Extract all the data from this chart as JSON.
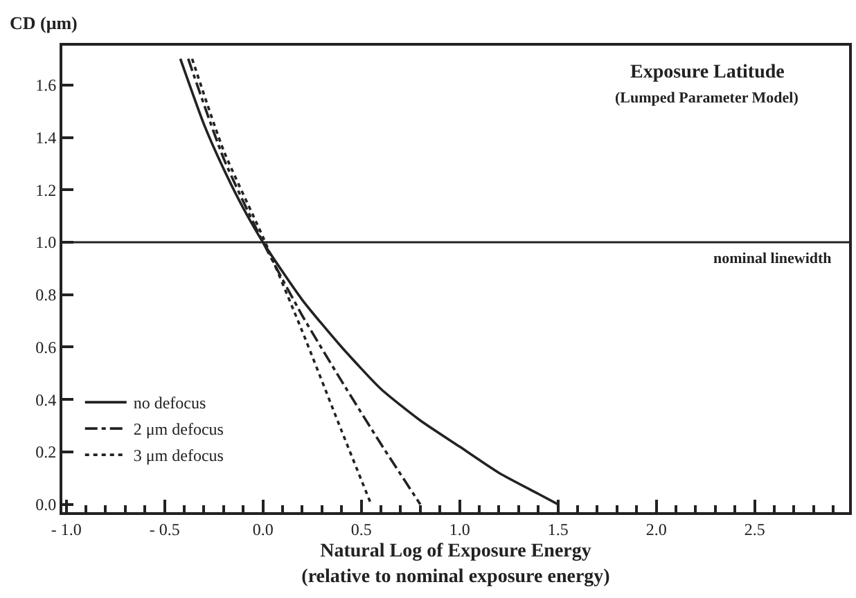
{
  "chart_data": {
    "type": "line",
    "title": "Exposure Latitude",
    "subtitle": "(Lumped Parameter Model)",
    "xlabel": "Natural Log of Exposure Energy\n(relative to nominal exposure energy)",
    "ylabel": "CD (μm)",
    "xlim": [
      -1.02,
      2.98
    ],
    "ylim": [
      -0.03,
      1.75
    ],
    "xticks": [
      {
        "value": -1.0,
        "label": "- 1.0"
      },
      {
        "value": -0.5,
        "label": "- 0.5"
      },
      {
        "value": 0.0,
        "label": "0.0"
      },
      {
        "value": 0.5,
        "label": "0.5"
      },
      {
        "value": 1.0,
        "label": "1.0"
      },
      {
        "value": 1.5,
        "label": "1.5"
      },
      {
        "value": 2.0,
        "label": "2.0"
      },
      {
        "value": 2.5,
        "label": "2.5"
      }
    ],
    "yticks": [
      {
        "value": 0,
        "label": "0.0"
      },
      {
        "value": 0.2,
        "label": "0.2"
      },
      {
        "value": 0.4,
        "label": "0.4"
      },
      {
        "value": 0.6,
        "label": "0.6"
      },
      {
        "value": 0.8,
        "label": "0.8"
      },
      {
        "value": 1.0,
        "label": "1.0"
      },
      {
        "value": 1.2,
        "label": "1.2"
      },
      {
        "value": 1.4,
        "label": "1.4"
      },
      {
        "value": 1.6,
        "label": "1.6"
      }
    ],
    "legend": "bottom left",
    "marker": "none",
    "ref_lines": [
      {
        "axis": "y",
        "value": 1.0,
        "label": "nominal linewidth",
        "color": "#222222"
      }
    ],
    "series": [
      {
        "name": "no defocus",
        "color": "#222222",
        "line_style": "solid",
        "x": [
          -0.42,
          -0.3,
          -0.2,
          -0.1,
          0.0,
          0.2,
          0.4,
          0.6,
          0.8,
          1.0,
          1.2,
          1.4,
          1.5
        ],
        "values": [
          1.7,
          1.45,
          1.28,
          1.13,
          1.0,
          0.78,
          0.6,
          0.44,
          0.32,
          0.22,
          0.12,
          0.04,
          0.0
        ]
      },
      {
        "name": "2 μm defocus",
        "color": "#222222",
        "line_style": "dashdot",
        "x": [
          -0.38,
          -0.2,
          0.0,
          0.2,
          0.4,
          0.6,
          0.8
        ],
        "values": [
          1.7,
          1.32,
          1.0,
          0.72,
          0.47,
          0.23,
          0.0
        ]
      },
      {
        "name": "3 μm defocus",
        "color": "#222222",
        "line_style": "dotted",
        "x": [
          -0.36,
          -0.2,
          0.0,
          0.2,
          0.4,
          0.55
        ],
        "values": [
          1.7,
          1.35,
          1.02,
          0.66,
          0.28,
          0.0
        ]
      }
    ]
  }
}
